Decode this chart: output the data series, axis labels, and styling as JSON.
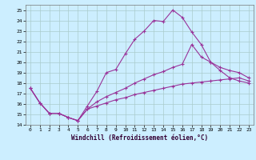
{
  "xlabel": "Windchill (Refroidissement éolien,°C)",
  "bg_color": "#cceeff",
  "line_color": "#993399",
  "grid_color": "#aacccc",
  "xlim": [
    -0.5,
    23.5
  ],
  "ylim": [
    14,
    25.5
  ],
  "xticks": [
    0,
    1,
    2,
    3,
    4,
    5,
    6,
    7,
    8,
    9,
    10,
    11,
    12,
    13,
    14,
    15,
    16,
    17,
    18,
    19,
    20,
    21,
    22,
    23
  ],
  "yticks": [
    14,
    15,
    16,
    17,
    18,
    19,
    20,
    21,
    22,
    23,
    24,
    25
  ],
  "line1_x": [
    0,
    1,
    2,
    3,
    4,
    5,
    6,
    7,
    8,
    9,
    10,
    11,
    12,
    13,
    14,
    15,
    16,
    17,
    18,
    19,
    20,
    21,
    22,
    23
  ],
  "line1_y": [
    17.5,
    16.1,
    15.1,
    15.1,
    14.7,
    14.4,
    15.8,
    17.2,
    19.0,
    19.3,
    20.8,
    22.2,
    23.0,
    24.0,
    23.9,
    25.0,
    24.3,
    22.9,
    21.7,
    20.0,
    19.2,
    18.5,
    18.2,
    18.0
  ],
  "line2_x": [
    0,
    1,
    2,
    3,
    4,
    5,
    6,
    7,
    8,
    9,
    10,
    11,
    12,
    13,
    14,
    15,
    16,
    17,
    18,
    19,
    20,
    21,
    22,
    23
  ],
  "line2_y": [
    17.5,
    16.1,
    15.1,
    15.1,
    14.7,
    14.4,
    15.5,
    16.2,
    16.7,
    17.1,
    17.5,
    18.0,
    18.4,
    18.8,
    19.1,
    19.5,
    19.8,
    21.7,
    20.5,
    20.0,
    19.5,
    19.2,
    19.0,
    18.5
  ],
  "line3_x": [
    0,
    1,
    2,
    3,
    4,
    5,
    6,
    7,
    8,
    9,
    10,
    11,
    12,
    13,
    14,
    15,
    16,
    17,
    18,
    19,
    20,
    21,
    22,
    23
  ],
  "line3_y": [
    17.5,
    16.1,
    15.1,
    15.1,
    14.7,
    14.4,
    15.5,
    15.8,
    16.1,
    16.4,
    16.6,
    16.9,
    17.1,
    17.3,
    17.5,
    17.7,
    17.9,
    18.0,
    18.1,
    18.2,
    18.3,
    18.4,
    18.5,
    18.2
  ]
}
